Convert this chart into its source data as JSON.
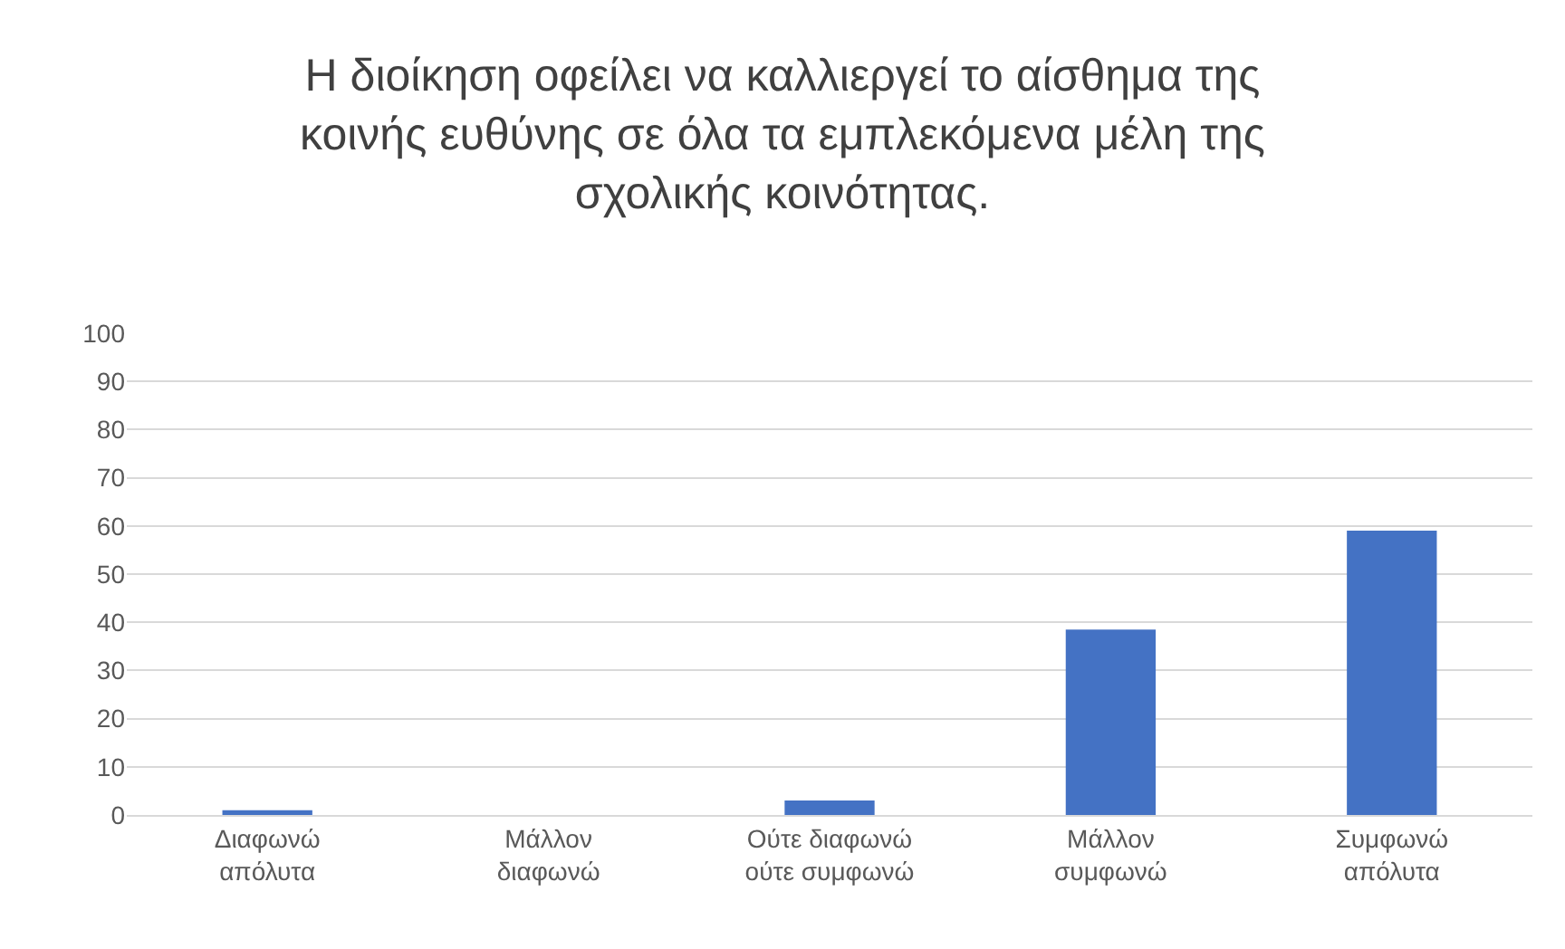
{
  "chart_data": {
    "type": "bar",
    "title": "Η διοίκηση οφείλει να καλλιεργεί το αίσθημα της\nκοινής ευθύνης σε όλα τα εμπλεκόμενα μέλη της\nσχολικής κοινότητας.",
    "categories": [
      "Διαφωνώ\nαπόλυτα",
      "Μάλλον\nδιαφωνώ",
      "Ούτε διαφωνώ\nούτε συμφωνώ",
      "Μάλλον\nσυμφωνώ",
      "Συμφωνώ\nαπόλυτα"
    ],
    "values": [
      1,
      0,
      3,
      38.5,
      59
    ],
    "color": "#4472c4",
    "ylim": [
      0,
      100
    ],
    "yticks": [
      0,
      10,
      20,
      30,
      40,
      50,
      60,
      70,
      80,
      90,
      100
    ],
    "grid": "y"
  }
}
